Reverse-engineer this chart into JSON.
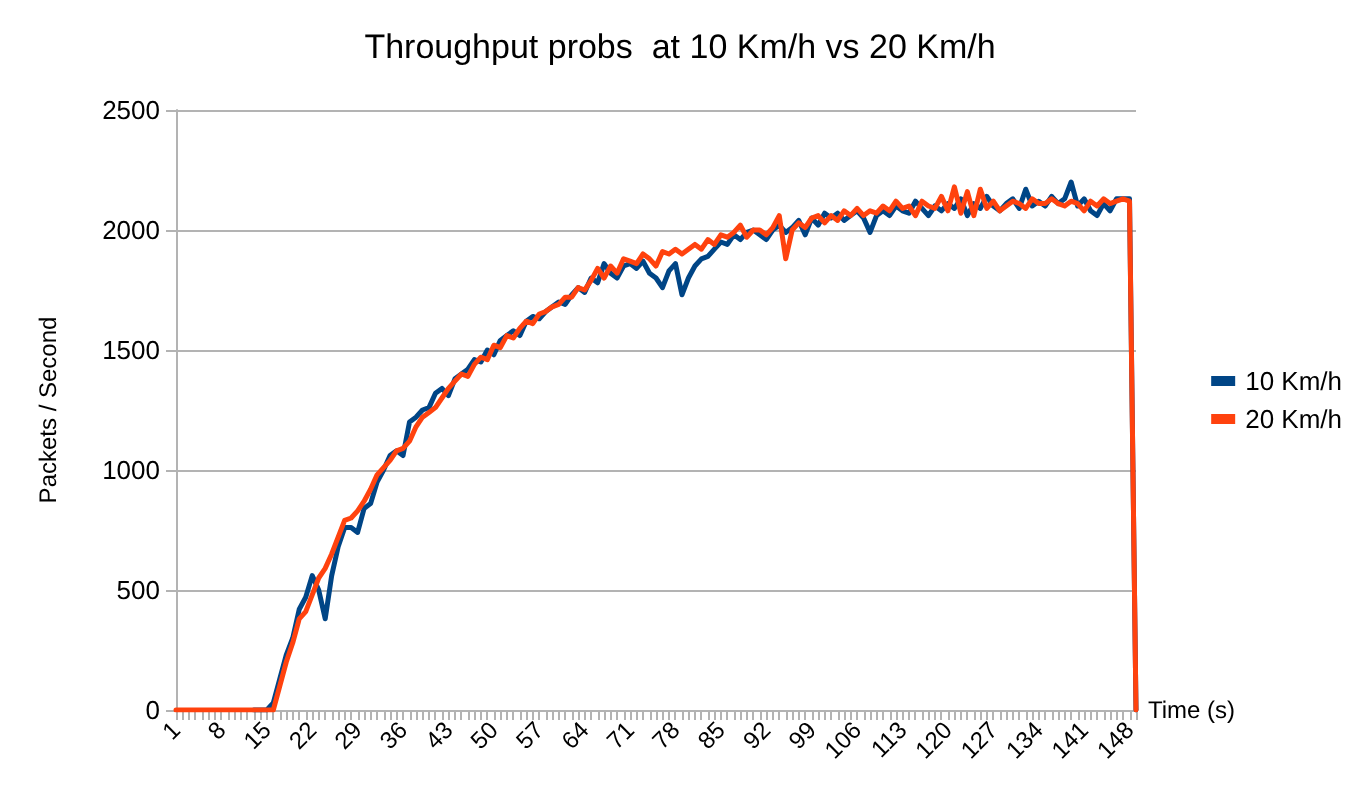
{
  "chart_data": {
    "type": "line",
    "title": "Throughput probs  at 10 Km/h vs 20 Km/h",
    "xlabel": "Time (s)",
    "ylabel": "Packets / Second",
    "categories": [
      "1",
      null,
      null,
      null,
      null,
      null,
      null,
      "8",
      null,
      null,
      null,
      null,
      null,
      null,
      "15",
      null,
      null,
      null,
      null,
      null,
      null,
      "22",
      null,
      null,
      null,
      null,
      null,
      null,
      "29",
      null,
      null,
      null,
      null,
      null,
      null,
      "36",
      null,
      null,
      null,
      null,
      null,
      null,
      "43",
      null,
      null,
      null,
      null,
      null,
      null,
      "50",
      null,
      null,
      null,
      null,
      null,
      null,
      "57",
      null,
      null,
      null,
      null,
      null,
      null,
      "64",
      null,
      null,
      null,
      null,
      null,
      null,
      "71",
      null,
      null,
      null,
      null,
      null,
      null,
      "78",
      null,
      null,
      null,
      null,
      null,
      null,
      "85",
      null,
      null,
      null,
      null,
      null,
      null,
      "92",
      null,
      null,
      null,
      null,
      null,
      null,
      "99",
      null,
      null,
      null,
      null,
      null,
      null,
      "106",
      null,
      null,
      null,
      null,
      null,
      null,
      "113",
      null,
      null,
      null,
      null,
      null,
      null,
      "120",
      null,
      null,
      null,
      null,
      null,
      null,
      "127",
      null,
      null,
      null,
      null,
      null,
      null,
      "134",
      null,
      null,
      null,
      null,
      null,
      null,
      "141",
      null,
      null,
      null,
      null,
      null,
      null,
      "148",
      null
    ],
    "series": [
      {
        "name": "10 Km/h",
        "color": "#004586",
        "values": [
          null,
          null,
          null,
          null,
          null,
          null,
          null,
          null,
          null,
          null,
          null,
          null,
          0,
          0,
          0,
          30,
          130,
          230,
          300,
          420,
          470,
          560,
          500,
          380,
          560,
          680,
          760,
          760,
          740,
          840,
          860,
          950,
          1000,
          1060,
          1080,
          1060,
          1200,
          1220,
          1250,
          1260,
          1320,
          1340,
          1310,
          1380,
          1400,
          1420,
          1460,
          1450,
          1500,
          1480,
          1540,
          1560,
          1580,
          1560,
          1620,
          1640,
          1630,
          1660,
          1680,
          1700,
          1690,
          1730,
          1760,
          1740,
          1800,
          1780,
          1860,
          1820,
          1800,
          1850,
          1860,
          1840,
          1870,
          1820,
          1800,
          1760,
          1830,
          1860,
          1730,
          1800,
          1850,
          1880,
          1890,
          1920,
          1950,
          1940,
          1980,
          1960,
          1990,
          2000,
          1980,
          1960,
          2000,
          2020,
          1990,
          2010,
          2040,
          1980,
          2050,
          2020,
          2070,
          2050,
          2070,
          2040,
          2060,
          2080,
          2050,
          1990,
          2060,
          2080,
          2060,
          2100,
          2080,
          2070,
          2120,
          2090,
          2060,
          2100,
          2080,
          2110,
          2090,
          2130,
          2060,
          2110,
          2090,
          2140,
          2100,
          2080,
          2110,
          2130,
          2090,
          2170,
          2100,
          2120,
          2100,
          2140,
          2110,
          2130,
          2200,
          2100,
          2130,
          2080,
          2060,
          2110,
          2080,
          2130,
          2130,
          2130,
          0
        ]
      },
      {
        "name": "20 Km/h",
        "color": "#ff420e",
        "values": [
          0,
          0,
          0,
          0,
          0,
          0,
          0,
          0,
          0,
          0,
          0,
          0,
          0,
          0,
          0,
          0,
          100,
          200,
          280,
          380,
          410,
          480,
          550,
          590,
          650,
          720,
          790,
          800,
          830,
          870,
          920,
          980,
          1010,
          1040,
          1080,
          1090,
          1120,
          1180,
          1220,
          1240,
          1260,
          1300,
          1340,
          1370,
          1400,
          1390,
          1440,
          1470,
          1460,
          1520,
          1510,
          1560,
          1550,
          1590,
          1620,
          1610,
          1650,
          1660,
          1680,
          1690,
          1720,
          1720,
          1760,
          1750,
          1790,
          1840,
          1800,
          1850,
          1820,
          1880,
          1870,
          1860,
          1900,
          1880,
          1850,
          1910,
          1900,
          1920,
          1900,
          1920,
          1940,
          1920,
          1960,
          1940,
          1980,
          1970,
          1990,
          2020,
          1970,
          2000,
          2000,
          1980,
          2010,
          2060,
          1880,
          2000,
          2030,
          2010,
          2050,
          2060,
          2030,
          2060,
          2040,
          2080,
          2060,
          2090,
          2060,
          2080,
          2070,
          2100,
          2080,
          2120,
          2090,
          2100,
          2060,
          2120,
          2100,
          2090,
          2140,
          2080,
          2180,
          2070,
          2160,
          2060,
          2170,
          2090,
          2120,
          2080,
          2100,
          2120,
          2110,
          2090,
          2130,
          2110,
          2110,
          2130,
          2110,
          2100,
          2120,
          2110,
          2080,
          2120,
          2100,
          2130,
          2110,
          2120,
          2130,
          2120,
          0
        ]
      }
    ],
    "ylim": [
      0,
      2500
    ],
    "yticks": [
      0,
      500,
      1000,
      1500,
      2000,
      2500
    ],
    "grid": "y",
    "legend": "right",
    "marker": "none",
    "line_style": "solid"
  }
}
